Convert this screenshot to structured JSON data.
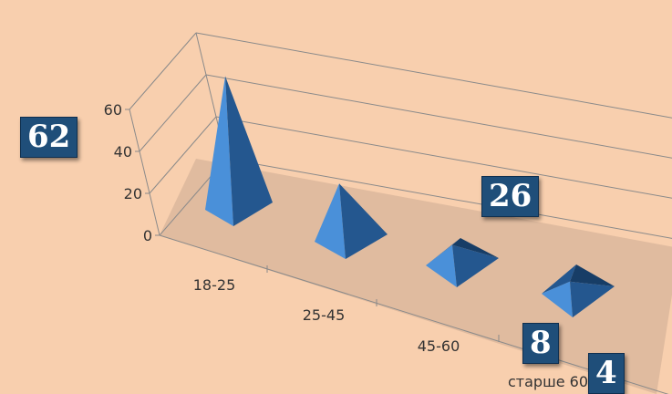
{
  "chart_data": {
    "type": "bar",
    "style": "3d-pyramid",
    "categories": [
      "18-25",
      "25-45",
      "45-60",
      "старше 60"
    ],
    "values": [
      62,
      26,
      8,
      4
    ],
    "ylim": [
      0,
      60
    ],
    "yticks": [
      0,
      20,
      40,
      60
    ],
    "grid": true,
    "legend": "none",
    "data_labels": [
      "62",
      "26",
      "8",
      "4"
    ]
  },
  "colors": {
    "background": "#f8cfae",
    "floor": "#d8b49a",
    "pyramid_light": "#4a90d9",
    "pyramid_mid": "#3a7cc4",
    "pyramid_dark": "#24578f",
    "pyramid_darkest": "#173d66",
    "badge": "#1f4e79"
  }
}
